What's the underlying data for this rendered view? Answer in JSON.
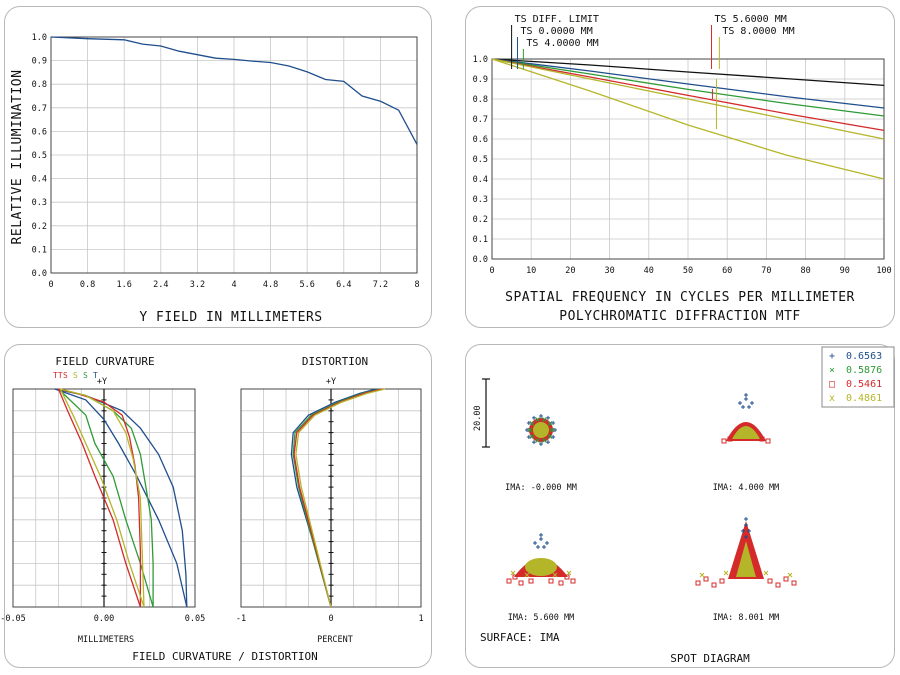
{
  "colors": {
    "blue": "#1f4e8c",
    "green": "#2e9a35",
    "red": "#d42a2a",
    "yellow": "#b5b52a",
    "black": "#111111",
    "grid": "#c8c8c8"
  },
  "chart_data": [
    {
      "id": "relative-illumination",
      "type": "line",
      "xlabel": "Y FIELD IN MILLIMETERS",
      "ylabel": "RELATIVE ILLUMINATION",
      "xlim": [
        0,
        8
      ],
      "ylim": [
        0,
        1
      ],
      "xticks": [
        "0",
        "0.8",
        "1.6",
        "2.4",
        "3.2",
        "4",
        "4.8",
        "5.6",
        "6.4",
        "7.2",
        "8"
      ],
      "yticks": [
        "0.0",
        "0.1",
        "0.2",
        "0.3",
        "0.4",
        "0.5",
        "0.6",
        "0.7",
        "0.8",
        "0.9",
        "1.0"
      ],
      "series": [
        {
          "color": "blue",
          "x": [
            0,
            0.8,
            1.6,
            2.0,
            2.4,
            2.8,
            3.2,
            3.6,
            4.0,
            4.4,
            4.8,
            5.2,
            5.6,
            6.0,
            6.4,
            6.8,
            7.2,
            7.6,
            8.0
          ],
          "y": [
            1.0,
            0.993,
            0.988,
            0.97,
            0.962,
            0.94,
            0.925,
            0.91,
            0.905,
            0.898,
            0.892,
            0.877,
            0.852,
            0.82,
            0.812,
            0.75,
            0.728,
            0.69,
            0.545
          ]
        }
      ]
    },
    {
      "id": "mtf",
      "type": "line",
      "title": "POLYCHROMATIC DIFFRACTION MTF",
      "xlabel": "SPATIAL FREQUENCY IN CYCLES PER MILLIMETER",
      "xlim": [
        0,
        100
      ],
      "ylim": [
        0,
        1
      ],
      "xticks": [
        "0",
        "10",
        "20",
        "30",
        "40",
        "50",
        "60",
        "70",
        "80",
        "90",
        "100"
      ],
      "yticks": [
        "0.0",
        "0.1",
        "0.2",
        "0.3",
        "0.4",
        "0.5",
        "0.6",
        "0.7",
        "0.8",
        "0.9",
        "1.0"
      ],
      "legend": [
        {
          "label": "TS DIFF. LIMIT",
          "x_at": 5,
          "color": "black"
        },
        {
          "label": "TS 0.0000 MM",
          "x_at": 6.5,
          "color": "blue"
        },
        {
          "label": "TS 4.0000 MM",
          "x_at": 8,
          "color": "green"
        },
        {
          "label": "TS 5.6000 MM",
          "x_at": 56,
          "color": "red"
        },
        {
          "label": "TS 8.0000 MM",
          "x_at": 58,
          "color": "yellow"
        }
      ],
      "series": [
        {
          "color": "black",
          "x": [
            0,
            25,
            50,
            75,
            100
          ],
          "y": [
            1.0,
            0.97,
            0.935,
            0.902,
            0.868
          ]
        },
        {
          "color": "blue",
          "x": [
            0,
            25,
            50,
            75,
            100
          ],
          "y": [
            1.0,
            0.94,
            0.875,
            0.812,
            0.755
          ]
        },
        {
          "color": "green",
          "x": [
            0,
            25,
            50,
            75,
            100
          ],
          "y": [
            1.0,
            0.925,
            0.848,
            0.778,
            0.715
          ]
        },
        {
          "color": "red",
          "x": [
            0,
            25,
            50,
            75,
            100
          ],
          "y": [
            1.0,
            0.91,
            0.818,
            0.727,
            0.643
          ]
        },
        {
          "color": "yellow",
          "x": [
            0,
            25,
            50,
            75,
            100
          ],
          "y": [
            1.0,
            0.9,
            0.8,
            0.7,
            0.6
          ]
        },
        {
          "color": "yellow",
          "x": [
            0,
            25,
            50,
            75,
            100
          ],
          "y": [
            1.0,
            0.84,
            0.67,
            0.52,
            0.4
          ]
        }
      ]
    },
    {
      "id": "field-curvature",
      "type": "line",
      "title": "FIELD CURVATURE",
      "xlabel": "MILLIMETERS",
      "axis_label": "+Y",
      "legend_labels": [
        "TT",
        "S",
        "S",
        "S",
        "T"
      ],
      "xlim": [
        -0.05,
        0.05
      ],
      "ylim": [
        0,
        1
      ],
      "xticks": [
        "-0.05",
        "0.00",
        "0.05"
      ],
      "series": [
        {
          "color": "blue",
          "x": [
            0.0455,
            0.045,
            0.043,
            0.038,
            0.03,
            0.02,
            0.01,
            -0.01,
            -0.027
          ],
          "y": [
            0,
            0.15,
            0.35,
            0.55,
            0.7,
            0.82,
            0.9,
            0.97,
            1.0
          ]
        },
        {
          "color": "blue",
          "x": [
            0.0455,
            0.04,
            0.03,
            0.018,
            0.008,
            0.0,
            -0.01,
            -0.027
          ],
          "y": [
            0,
            0.2,
            0.4,
            0.6,
            0.75,
            0.86,
            0.95,
            1.0
          ]
        },
        {
          "color": "green",
          "x": [
            0.027,
            0.027,
            0.026,
            0.023,
            0.02,
            0.015,
            0.005,
            -0.01,
            -0.025
          ],
          "y": [
            0,
            0.2,
            0.4,
            0.55,
            0.7,
            0.82,
            0.9,
            0.97,
            1.0
          ]
        },
        {
          "color": "green",
          "x": [
            0.027,
            0.02,
            0.012,
            0.005,
            -0.005,
            -0.01,
            -0.025
          ],
          "y": [
            0,
            0.2,
            0.4,
            0.6,
            0.75,
            0.88,
            1.0
          ]
        },
        {
          "color": "red",
          "x": [
            0.02,
            0.02,
            0.019,
            0.017,
            0.014,
            0.01,
            0.0,
            -0.015,
            -0.025
          ],
          "y": [
            0,
            0.25,
            0.5,
            0.65,
            0.78,
            0.88,
            0.94,
            0.98,
            1.0
          ]
        },
        {
          "color": "red",
          "x": [
            0.02,
            0.012,
            0.005,
            -0.005,
            -0.012,
            -0.02,
            -0.025
          ],
          "y": [
            0,
            0.2,
            0.4,
            0.6,
            0.75,
            0.9,
            1.0
          ]
        },
        {
          "color": "yellow",
          "x": [
            0.022,
            0.021,
            0.02,
            0.016,
            0.012,
            0.005,
            -0.01,
            -0.024
          ],
          "y": [
            0,
            0.25,
            0.5,
            0.68,
            0.8,
            0.9,
            0.97,
            1.0
          ]
        },
        {
          "color": "yellow",
          "x": [
            0.022,
            0.014,
            0.007,
            -0.002,
            -0.01,
            -0.017,
            -0.024
          ],
          "y": [
            0,
            0.2,
            0.4,
            0.6,
            0.75,
            0.88,
            1.0
          ]
        }
      ]
    },
    {
      "id": "distortion",
      "type": "line",
      "title": "DISTORTION",
      "xlabel": "PERCENT",
      "axis_label": "+Y",
      "xlim": [
        -1,
        1
      ],
      "ylim": [
        0,
        1
      ],
      "xticks": [
        "-1",
        "0",
        "1"
      ],
      "series": [
        {
          "color": "blue",
          "x": [
            0,
            -0.2,
            -0.38,
            -0.44,
            -0.42,
            -0.25,
            0.05,
            0.32,
            0.5
          ],
          "y": [
            0,
            0.3,
            0.55,
            0.7,
            0.8,
            0.88,
            0.94,
            0.98,
            1.0
          ]
        },
        {
          "color": "green",
          "x": [
            0,
            -0.2,
            -0.36,
            -0.42,
            -0.4,
            -0.22,
            0.08,
            0.35,
            0.55
          ],
          "y": [
            0,
            0.3,
            0.55,
            0.7,
            0.8,
            0.88,
            0.94,
            0.98,
            1.0
          ]
        },
        {
          "color": "red",
          "x": [
            0,
            -0.19,
            -0.35,
            -0.41,
            -0.38,
            -0.2,
            0.1,
            0.37,
            0.57
          ],
          "y": [
            0,
            0.3,
            0.55,
            0.7,
            0.8,
            0.88,
            0.94,
            0.98,
            1.0
          ]
        },
        {
          "color": "yellow",
          "x": [
            0,
            -0.18,
            -0.33,
            -0.39,
            -0.36,
            -0.18,
            0.12,
            0.4,
            0.6
          ],
          "y": [
            0,
            0.3,
            0.55,
            0.7,
            0.8,
            0.88,
            0.94,
            0.98,
            1.0
          ]
        }
      ]
    },
    {
      "id": "spot-diagram",
      "type": "scatter",
      "title": "SPOT DIAGRAM",
      "surface_label": "SURFACE: IMA",
      "scale_bar_label": "20.00",
      "legend": [
        {
          "label": "0.6563",
          "marker": "+",
          "color": "blue"
        },
        {
          "label": "0.5876",
          "marker": "×",
          "color": "green"
        },
        {
          "label": "0.5461",
          "marker": "□",
          "color": "red"
        },
        {
          "label": "0.4861",
          "marker": "x",
          "color": "yellow"
        }
      ],
      "spots": [
        {
          "label": "IMA: -0.000 MM"
        },
        {
          "label": "IMA: 4.000 MM"
        },
        {
          "label": "IMA: 5.600 MM"
        },
        {
          "label": "IMA: 8.001 MM"
        }
      ]
    }
  ],
  "footer_label": "FIELD CURVATURE / DISTORTION"
}
